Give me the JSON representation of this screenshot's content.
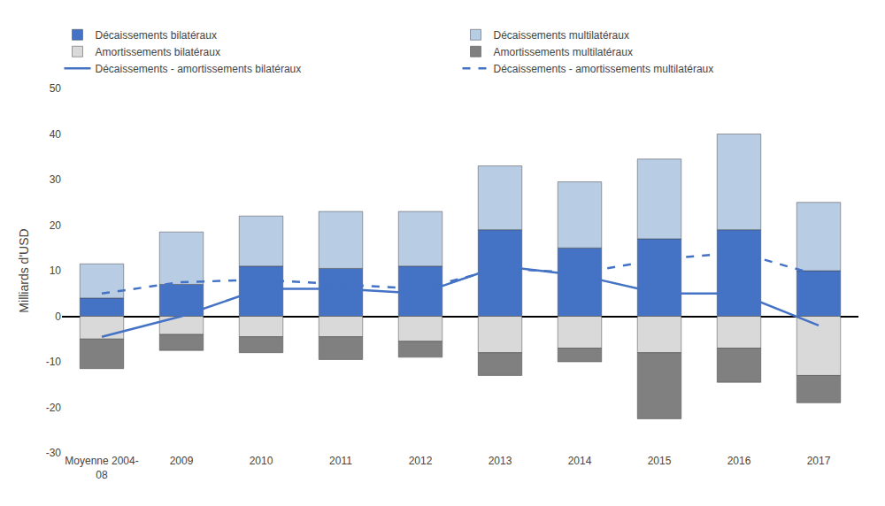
{
  "chart_data": {
    "type": "bar",
    "stacked": true,
    "categories": [
      "Moyenne 2004-\n08",
      "2009",
      "2010",
      "2011",
      "2012",
      "2013",
      "2014",
      "2015",
      "2016",
      "2017"
    ],
    "ylabel": "Milliards d'USD",
    "ylim": [
      -30,
      50
    ],
    "yticks": [
      -30,
      -20,
      -10,
      0,
      10,
      20,
      30,
      40,
      50
    ],
    "grid": false,
    "legend": "top",
    "series": [
      {
        "name": "Décaissements bilatéraux",
        "type": "bar",
        "color": "#4472C4",
        "values": [
          4.0,
          7.0,
          11.0,
          10.5,
          11.0,
          19.0,
          15.0,
          17.0,
          19.0,
          10.0
        ]
      },
      {
        "name": "Décaissements multilatéraux",
        "type": "bar",
        "color": "#B8CCE4",
        "values": [
          7.5,
          11.5,
          11.0,
          12.5,
          12.0,
          14.0,
          14.5,
          17.5,
          21.0,
          15.0
        ]
      },
      {
        "name": "Amortissements bilatéraux",
        "type": "bar",
        "color": "#D9D9D9",
        "values": [
          -5.0,
          -4.0,
          -4.5,
          -4.5,
          -5.5,
          -8.0,
          -7.0,
          -8.0,
          -7.0,
          -13.0
        ]
      },
      {
        "name": "Amortissements multilatéraux",
        "type": "bar",
        "color": "#808080",
        "values": [
          -6.5,
          -3.5,
          -3.5,
          -5.0,
          -3.5,
          -5.0,
          -3.0,
          -14.5,
          -7.5,
          -6.0
        ]
      },
      {
        "name": "Décaissements - amortissements bilatéraux",
        "type": "line",
        "color": "#4472C4",
        "line_style": "solid",
        "values": [
          -4.5,
          0.0,
          6.0,
          6.0,
          5.0,
          11.0,
          9.0,
          5.0,
          5.0,
          -2.0
        ]
      },
      {
        "name": "Décaissements - amortissements multilatéraux",
        "type": "line",
        "color": "#4472C4",
        "line_style": "dashed",
        "values": [
          5.0,
          7.5,
          8.0,
          7.0,
          6.0,
          10.5,
          9.5,
          12.5,
          14.0,
          9.0
        ]
      }
    ]
  }
}
